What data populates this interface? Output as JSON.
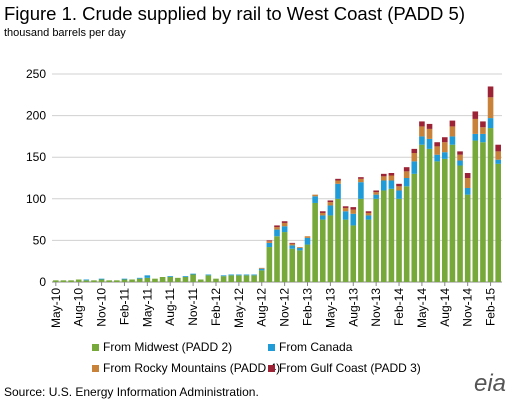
{
  "chart_data": {
    "type": "stacked_bar",
    "title": "Figure 1. Crude supplied by rail to West Coast (PADD 5)",
    "subtitle": "thousand  barrels  per day",
    "source": "Source:  U.S. Energy Information  Administration.",
    "logo": "eia",
    "categories": [
      "May-10",
      null,
      null,
      "Aug-10",
      null,
      null,
      "Nov-10",
      null,
      null,
      "Feb-11",
      null,
      null,
      "May-11",
      null,
      null,
      "Aug-11",
      null,
      null,
      "Nov-11",
      null,
      null,
      "Feb-12",
      null,
      null,
      "May-12",
      null,
      null,
      "Aug-12",
      null,
      null,
      "Nov-12",
      null,
      null,
      "Feb-13",
      null,
      null,
      "May-13",
      null,
      null,
      "Aug-13",
      null,
      null,
      "Nov-13",
      null,
      null,
      "Feb-14",
      null,
      null,
      "May-14",
      null,
      null,
      "Aug-14",
      null,
      null,
      "Nov-14",
      null,
      null,
      "Feb-15",
      null
    ],
    "series": [
      {
        "name": "From Midwest (PADD 2)",
        "color": "#77a83a",
        "values": [
          2,
          2,
          2,
          3,
          2,
          2,
          3,
          2,
          2,
          3,
          3,
          4,
          5,
          4,
          6,
          6,
          5,
          6,
          9,
          3,
          8,
          4,
          7,
          8,
          8,
          8,
          8,
          14,
          42,
          55,
          60,
          40,
          38,
          45,
          95,
          75,
          80,
          100,
          75,
          68,
          100,
          75,
          100,
          110,
          112,
          100,
          115,
          130,
          165,
          160,
          145,
          148,
          165,
          140,
          105,
          170,
          168,
          185,
          142
        ]
      },
      {
        "name": "From Canada",
        "color": "#1f9bd7",
        "values": [
          0,
          0,
          0,
          0,
          1,
          0,
          1,
          0,
          0,
          1,
          0,
          1,
          3,
          0,
          0,
          1,
          0,
          1,
          1,
          0,
          1,
          0,
          1,
          1,
          1,
          1,
          1,
          2,
          5,
          8,
          7,
          4,
          3,
          8,
          8,
          5,
          12,
          18,
          10,
          14,
          20,
          5,
          5,
          12,
          10,
          10,
          10,
          15,
          10,
          12,
          8,
          8,
          10,
          6,
          8,
          8,
          10,
          12,
          5
        ]
      },
      {
        "name": "From Rocky Mountains (PADD 4)",
        "color": "#c8823a",
        "values": [
          0,
          0,
          0,
          0,
          0,
          0,
          0,
          0,
          0,
          0,
          0,
          0,
          0,
          0,
          0,
          0,
          0,
          0,
          0,
          0,
          0,
          0,
          0,
          0,
          0,
          0,
          0,
          1,
          2,
          3,
          4,
          2,
          1,
          2,
          2,
          3,
          4,
          4,
          4,
          5,
          4,
          3,
          3,
          5,
          6,
          5,
          8,
          10,
          12,
          12,
          10,
          12,
          12,
          7,
          12,
          18,
          8,
          25,
          10
        ]
      },
      {
        "name": "From Gulf Coast (PADD 3)",
        "color": "#9b2335",
        "values": [
          0,
          0,
          0,
          0,
          0,
          0,
          0,
          0,
          0,
          0,
          0,
          0,
          0,
          0,
          0,
          0,
          0,
          0,
          0,
          0,
          0,
          0,
          0,
          0,
          0,
          0,
          0,
          0,
          1,
          2,
          2,
          1,
          0,
          0,
          0,
          2,
          2,
          2,
          2,
          3,
          2,
          2,
          2,
          3,
          3,
          3,
          5,
          5,
          6,
          6,
          5,
          6,
          7,
          4,
          6,
          9,
          7,
          13,
          8
        ]
      }
    ],
    "ylim": [
      0,
      250
    ],
    "yticks": [
      0,
      50,
      100,
      150,
      200,
      250
    ],
    "grid": true
  }
}
